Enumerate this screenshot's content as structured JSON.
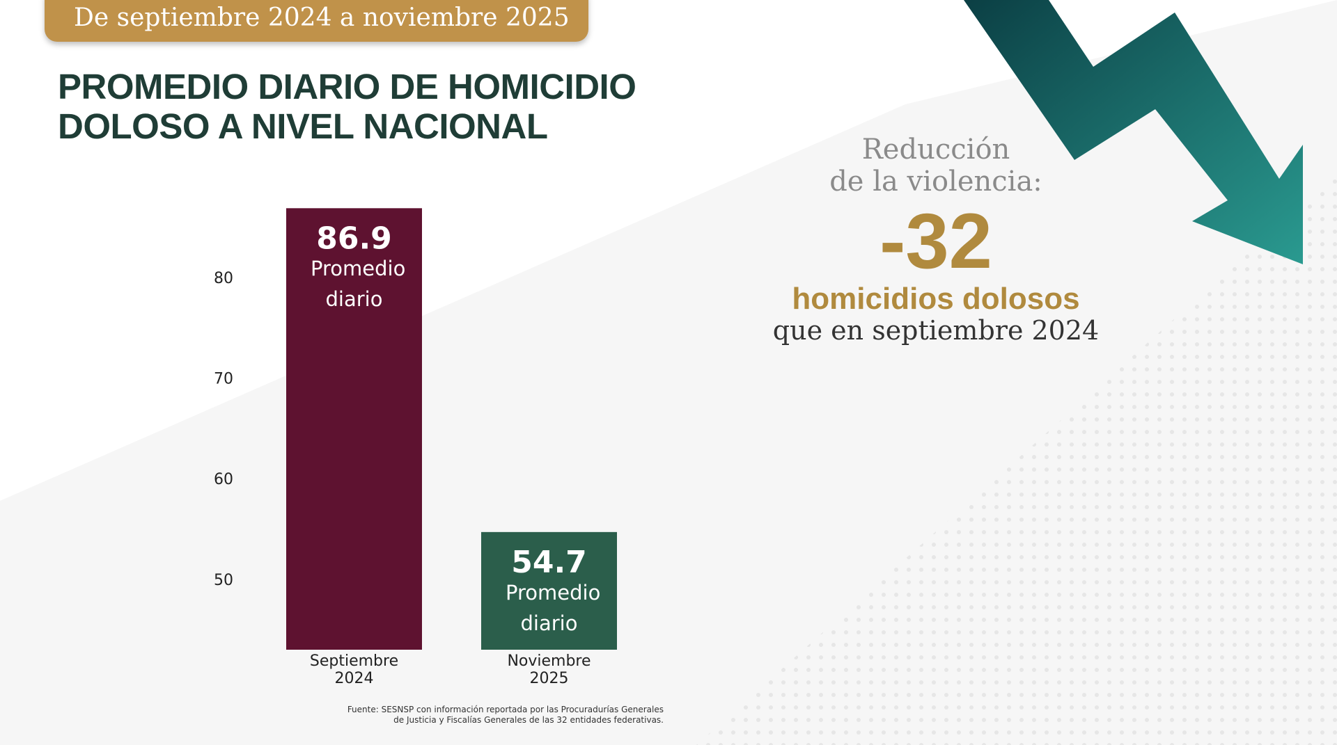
{
  "header": "De septiembre 2024 a noviembre 2025",
  "chart_data": {
    "type": "bar",
    "title": [
      "PROMEDIO DIARIO DE HOMICIDIO",
      "DOLOSO A NIVEL NACIONAL"
    ],
    "categories": [
      "Septiembre 2024",
      "Noviembre 2025"
    ],
    "series": [
      {
        "name": "Promedio diario",
        "colors": [
          "#5e1230",
          "#2b5e4b"
        ],
        "values": [
          86.9,
          54.7
        ]
      }
    ],
    "ylim": [
      43,
      90
    ],
    "yticks": [
      50,
      60,
      70,
      80
    ],
    "grid": false,
    "source": [
      "Fuente: SESNSP con información reportada por las Procuradurías Generales",
      "de Justicia y Fiscalías Generales de las 32 entidades federativas."
    ]
  },
  "callout": {
    "intro": [
      "Reducción",
      "de la violencia:"
    ],
    "value": -32,
    "unit": "homicidios dolosos",
    "note": "que en septiembre 2024"
  }
}
